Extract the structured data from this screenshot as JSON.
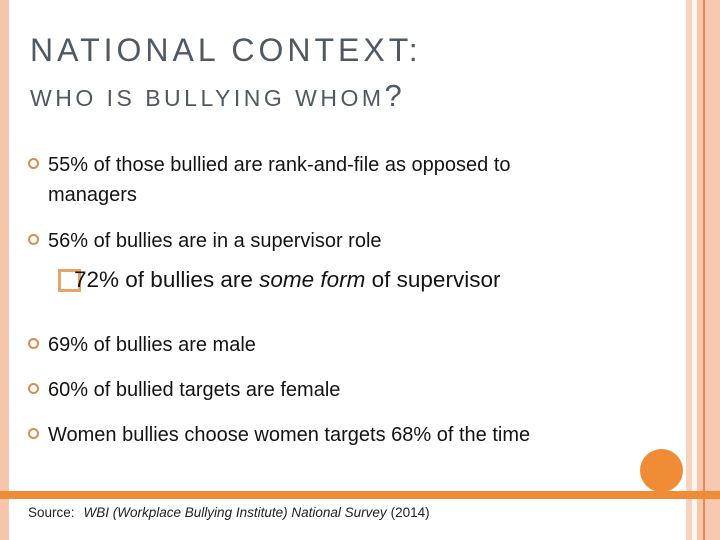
{
  "slide": {
    "title": "NATIONAL CONTEXT:",
    "subtitle": "WHO IS BULLYING WHOM",
    "subtitle_qmark": "?",
    "bullets": [
      {
        "type": "circle",
        "text": "55% of those bullied are rank-and-file as opposed to managers"
      },
      {
        "type": "circle",
        "text": "56% of bullies are in a supervisor role"
      },
      {
        "type": "square",
        "pre": "72% of bullies are ",
        "italic": "some form",
        "post": " of supervisor"
      },
      {
        "type": "circle",
        "text": "69% of bullies are male"
      },
      {
        "type": "circle",
        "text": "60% of bullied targets are female"
      },
      {
        "type": "circle",
        "text": "Women bullies choose women targets 68% of the time"
      }
    ],
    "source": {
      "label": "Source:",
      "citation": "WBI (Workplace Bullying Institute) National Survey",
      "year": "(2014)"
    },
    "colors": {
      "accent_orange": "#EF8C35",
      "bullet_ring": "#DC8C50",
      "square_outline": "#E8A368",
      "title_gray": "#4E5963",
      "border_peach": "#F6C5AC"
    }
  }
}
